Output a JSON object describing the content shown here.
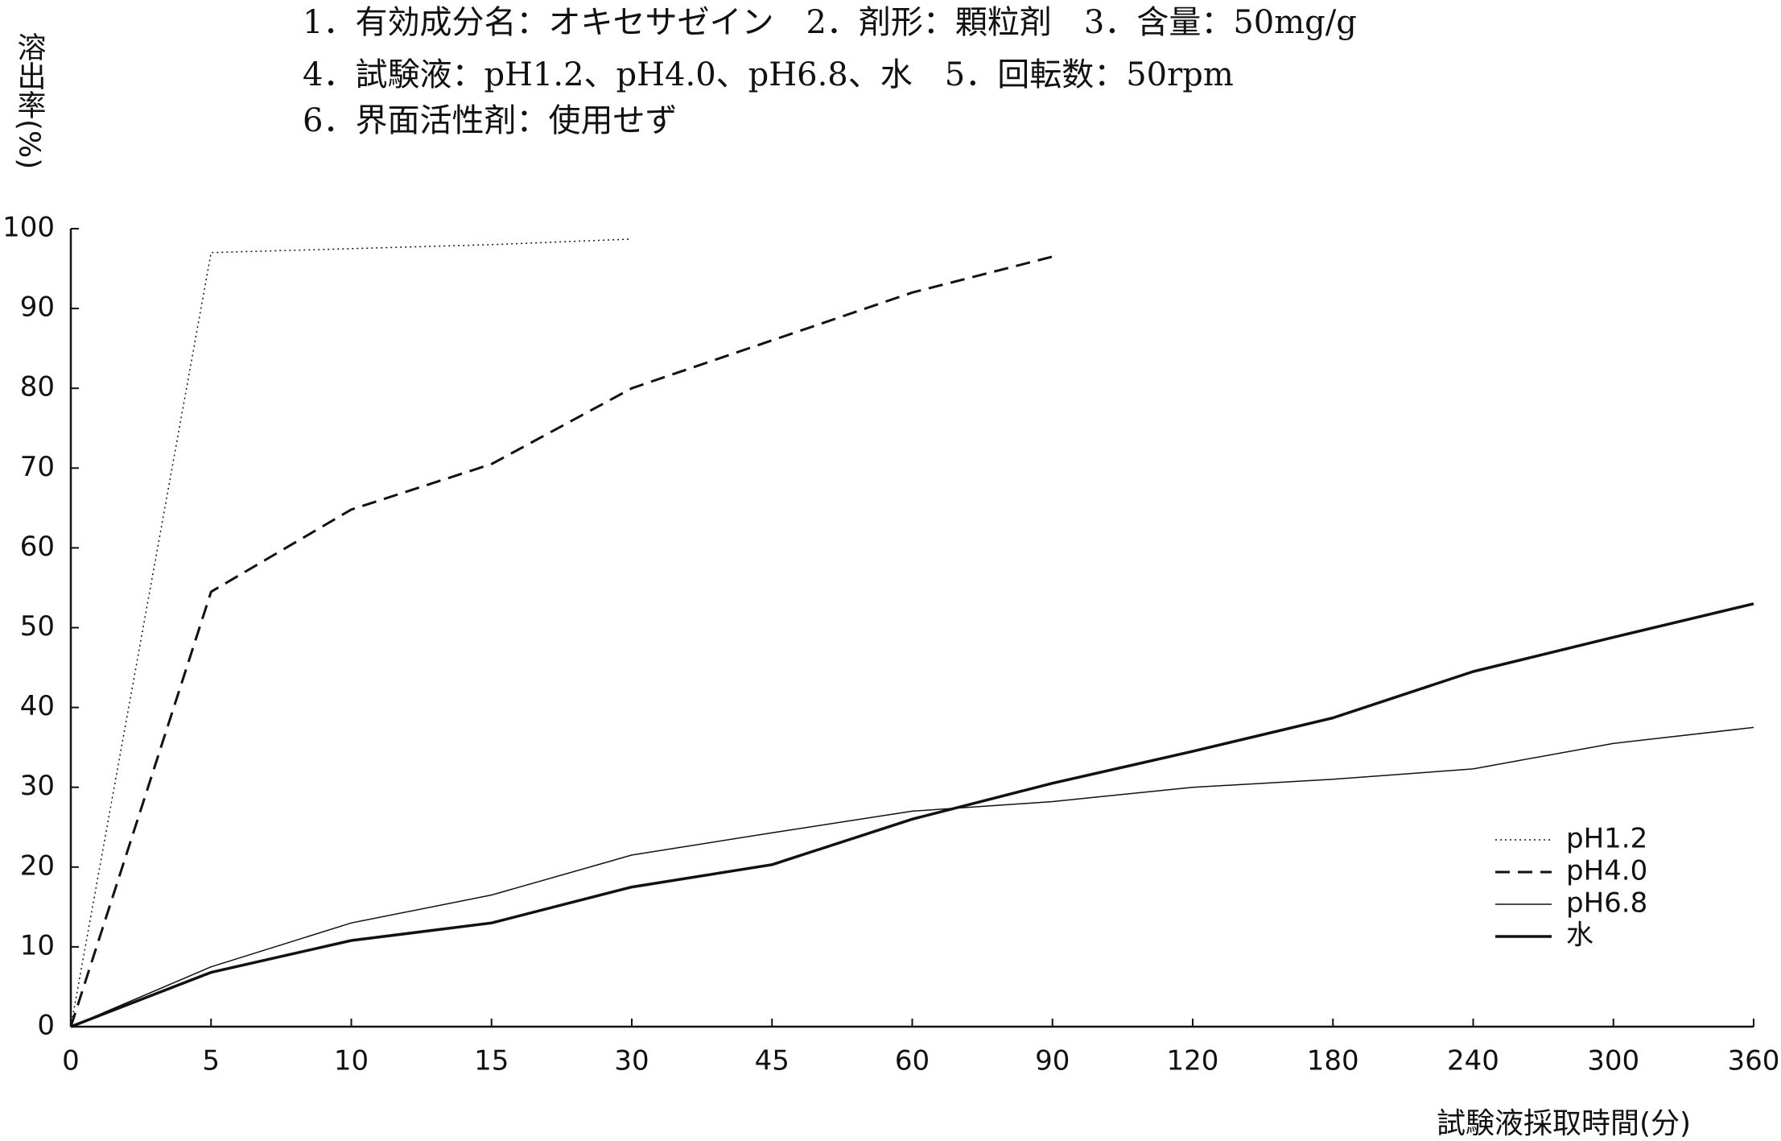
{
  "chart_data": {
    "type": "line",
    "notes": [
      "1．有効成分名：オキセサゼイン　2．剤形：顆粒剤　3．含量：50mg/g",
      "4．試験液：pH1.2、pH4.0、pH6.8、水　5．回転数：50rpm",
      "6．界面活性剤：使用せず"
    ],
    "y_label": "溶出率(%)",
    "x_label": "試験液採取時間(分)",
    "categories": [
      "0",
      "5",
      "10",
      "15",
      "30",
      "45",
      "60",
      "90",
      "120",
      "180",
      "240",
      "300",
      "360"
    ],
    "series": [
      {
        "name": "pH1.2",
        "color": "#111111",
        "line_style": "dotted",
        "values": [
          0,
          97,
          97.5,
          98,
          98.7,
          null,
          null,
          null,
          null,
          null,
          null,
          null,
          null
        ]
      },
      {
        "name": "pH4.0",
        "color": "#111111",
        "line_style": "dashed",
        "values": [
          0,
          54.5,
          64.8,
          70.5,
          80,
          86,
          92,
          96.5,
          null,
          null,
          null,
          null,
          null
        ]
      },
      {
        "name": "pH6.8",
        "color": "#111111",
        "line_style": "thin",
        "values": [
          0,
          7.5,
          13,
          16.5,
          21.5,
          24.3,
          27,
          28.2,
          30,
          31,
          32.3,
          35.5,
          37.5
        ]
      },
      {
        "name": "水",
        "color": "#111111",
        "line_style": "thick",
        "values": [
          0,
          6.8,
          10.8,
          13,
          17.5,
          20.3,
          26,
          30.5,
          34.5,
          38.7,
          44.5,
          48.8,
          53
        ]
      }
    ],
    "ylim": [
      0,
      100
    ],
    "yticks": [
      0,
      10,
      20,
      30,
      40,
      50,
      60,
      70,
      80,
      90,
      100
    ],
    "legend": "lower right",
    "grid": false
  }
}
